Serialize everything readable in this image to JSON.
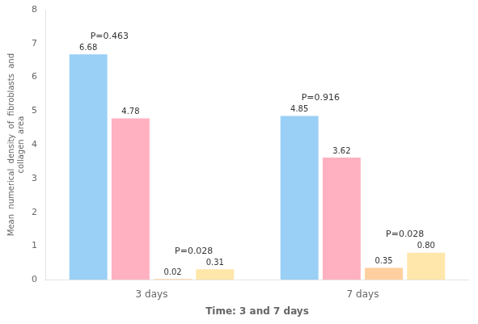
{
  "chart_data": {
    "type": "bar",
    "categories": [
      "3 days",
      "7 days"
    ],
    "series": [
      {
        "values": [
          6.68,
          4.85
        ],
        "value_labels": [
          "6.68",
          "4.85"
        ]
      },
      {
        "values": [
          4.78,
          3.62
        ],
        "value_labels": [
          "4.78",
          "3.62"
        ]
      },
      {
        "values": [
          0.02,
          0.35
        ],
        "value_labels": [
          "0.02",
          "0.35"
        ]
      },
      {
        "values": [
          0.31,
          0.8
        ],
        "value_labels": [
          "0.31",
          "0.80"
        ]
      }
    ],
    "annotations": [
      {
        "category": "3 days",
        "text": "P=0.463"
      },
      {
        "category": "3 days",
        "text": "P=0.028"
      },
      {
        "category": "7 days",
        "text": "P=0.916"
      },
      {
        "category": "7 days",
        "text": "P=0.028"
      }
    ],
    "x_label": "Time: 3 and 7 days",
    "y_label": "Mean  numerical  density  of  fibroblasts  and\ncollagen  area",
    "ylim": [
      0,
      8
    ],
    "yticks": [
      0,
      1,
      2,
      3,
      4,
      5,
      6,
      7,
      8
    ],
    "grid": false,
    "data_labels": true
  }
}
